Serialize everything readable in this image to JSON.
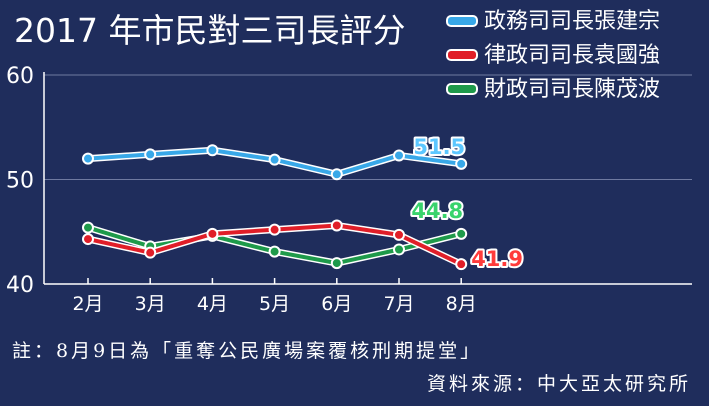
{
  "chart_data": {
    "type": "line",
    "title": "2017 年市民對三司長評分",
    "categories": [
      "2月",
      "3月",
      "4月",
      "5月",
      "6月",
      "7月",
      "8月"
    ],
    "ylim": [
      40,
      60
    ],
    "yticks": [
      "60",
      "50",
      "40"
    ],
    "grid": true,
    "legend_position": "top-right",
    "series": [
      {
        "name": "政務司司長張建宗",
        "color": "#38a8e8",
        "label_color": "#5cc7ff",
        "values": [
          52.0,
          52.4,
          52.8,
          51.9,
          50.5,
          52.3,
          51.5
        ],
        "end_label": "51.5"
      },
      {
        "name": "律政司司長袁國強",
        "color": "#e01e28",
        "label_color": "#ff3b3b",
        "values": [
          44.3,
          43.0,
          44.8,
          45.2,
          45.6,
          44.7,
          41.9
        ],
        "end_label": "41.9"
      },
      {
        "name": "財政司司長陳茂波",
        "color": "#1e9a4a",
        "label_color": "#39d36c",
        "values": [
          45.4,
          43.6,
          44.6,
          43.1,
          42.0,
          43.3,
          44.8
        ],
        "end_label": "44.8"
      }
    ]
  },
  "footer": {
    "note": "註：8月9日為「重奪公民廣場案覆核刑期提堂」",
    "source": "資料來源：中大亞太研究所"
  }
}
